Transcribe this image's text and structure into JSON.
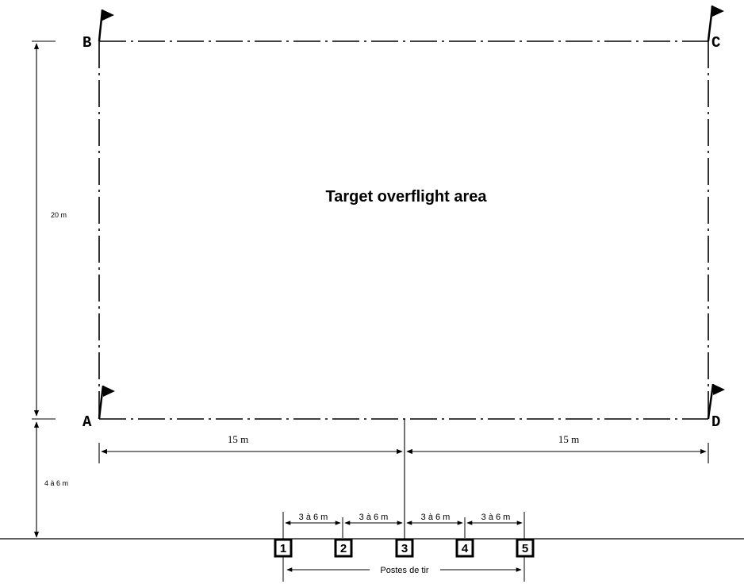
{
  "diagram": {
    "area_title": "Target overflight area",
    "corners": {
      "a": "A",
      "b": "B",
      "c": "C",
      "d": "D"
    },
    "dims": {
      "depth": "20 m",
      "offset": "4 à 6 m",
      "half_left": "15 m",
      "half_right": "15 m",
      "spacings": [
        "3 à 6 m",
        "3 à 6 m",
        "3 à 6 m",
        "3 à 6 m"
      ]
    },
    "posts": [
      "1",
      "2",
      "3",
      "4",
      "5"
    ],
    "posts_label": "Postes de tir"
  }
}
